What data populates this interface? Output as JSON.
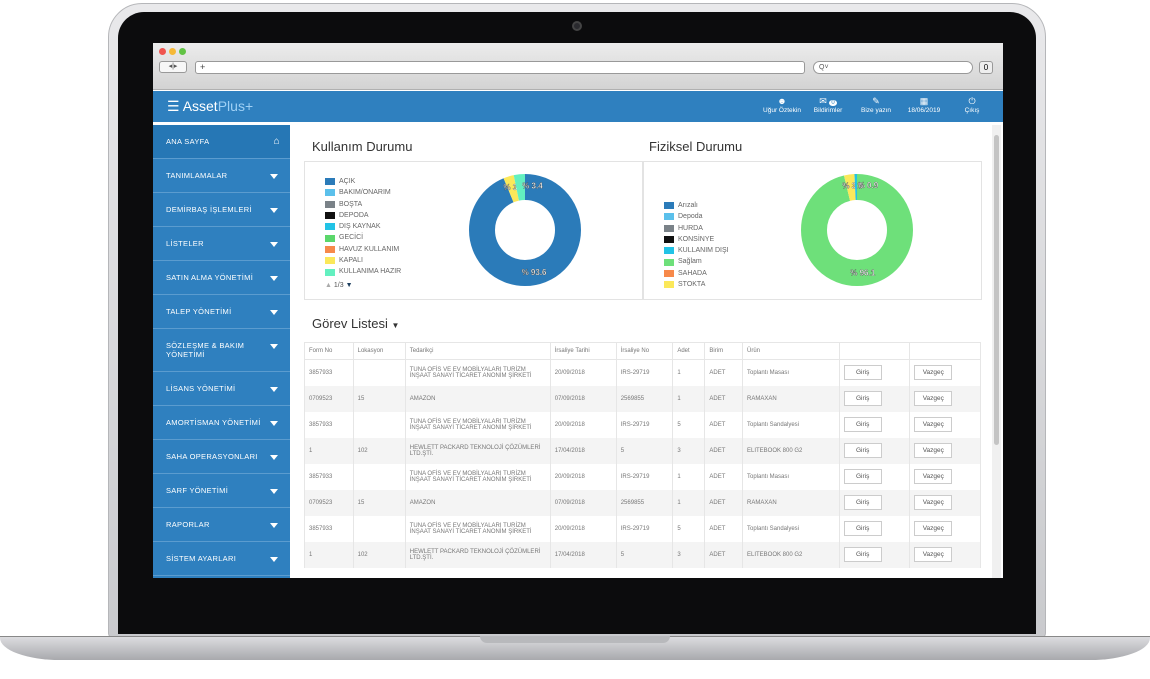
{
  "browser": {
    "url": "+",
    "search_placeholder": "Q˅",
    "nav": "◂|▸",
    "download": "0"
  },
  "app": {
    "logo_a": "Asset",
    "logo_b": "Plus+",
    "menu_icon": "☰"
  },
  "header_items": [
    {
      "label": "Uğur Öztekin",
      "icon": "user-icon",
      "glyph": "☻"
    },
    {
      "label": "Bildirimler",
      "icon": "megaphone-icon",
      "glyph": "✉",
      "badge": "0"
    },
    {
      "label": "Bize yazın",
      "icon": "feather-icon",
      "glyph": "✎"
    },
    {
      "label": "18/06/2019",
      "icon": "calendar-icon",
      "glyph": "▦"
    },
    {
      "label": "Çıkış",
      "icon": "power-icon",
      "glyph": "⏻"
    }
  ],
  "sidebar": [
    {
      "label": "ANA SAYFA"
    },
    {
      "label": "TANIMLAMALAR"
    },
    {
      "label": "DEMİRBAŞ İŞLEMLERİ"
    },
    {
      "label": "LİSTELER"
    },
    {
      "label": "SATIN ALMA YÖNETİMİ"
    },
    {
      "label": "TALEP YÖNETİMİ"
    },
    {
      "label": "SÖZLEŞME & BAKIM YÖNETİMİ"
    },
    {
      "label": "LİSANS YÖNETİMİ"
    },
    {
      "label": "AMORTİSMAN YÖNETİMİ"
    },
    {
      "label": "SAHA OPERASYONLARI"
    },
    {
      "label": "SARF YÖNETİMİ"
    },
    {
      "label": "RAPORLAR"
    },
    {
      "label": "SİSTEM AYARLARI"
    }
  ],
  "chart_data": [
    {
      "type": "pie",
      "title": "Kullanım Durumu",
      "donut": true,
      "legend": [
        {
          "name": "AÇIK",
          "color": "#2b7bb9"
        },
        {
          "name": "BAKIM/ONARIM",
          "color": "#5bc0eb"
        },
        {
          "name": "BOŞTA",
          "color": "#7a8288"
        },
        {
          "name": "DEPODA",
          "color": "#111111"
        },
        {
          "name": "DIŞ KAYNAK",
          "color": "#22c3e6"
        },
        {
          "name": "GECİCİ",
          "color": "#5bd76b"
        },
        {
          "name": "HAVUZ KULLANIM",
          "color": "#f7894a"
        },
        {
          "name": "KAPALI",
          "color": "#fbe85a"
        },
        {
          "name": "KULLANIMA HAZIR",
          "color": "#63f0c0"
        }
      ],
      "pager": "1/3",
      "slices": [
        {
          "name": "AÇIK",
          "value": 93.6,
          "label": "% 93.6",
          "color": "#2b7bb9"
        },
        {
          "name": "KAPALI",
          "value": 3.0,
          "label": "% 3.0",
          "color": "#fbe85a"
        },
        {
          "name": "KULLANIMA HAZIR",
          "value": 3.4,
          "label": "% 3.4",
          "color": "#63f0c0"
        }
      ]
    },
    {
      "type": "pie",
      "title": "Fiziksel Durumu",
      "donut": true,
      "legend": [
        {
          "name": "Arızalı",
          "color": "#2b7bb9"
        },
        {
          "name": "Depoda",
          "color": "#5bc0eb"
        },
        {
          "name": "HURDA",
          "color": "#7a8288"
        },
        {
          "name": "KONSİNYE",
          "color": "#111111"
        },
        {
          "name": "KULLANIM DIŞI",
          "color": "#22c3e6"
        },
        {
          "name": "Sağlam",
          "color": "#6ee07a"
        },
        {
          "name": "SAHADA",
          "color": "#f7894a"
        },
        {
          "name": "STOKTA",
          "color": "#fbe85a"
        }
      ],
      "slices": [
        {
          "name": "Sağlam",
          "value": 96.1,
          "label": "% 96.1",
          "color": "#6ee07a"
        },
        {
          "name": "STOKTA",
          "value": 3.0,
          "label": "% 3.0",
          "color": "#fbe85a"
        },
        {
          "name": "KULLANIM DIŞI",
          "value": 0.9,
          "label": "% 0.9",
          "color": "#22c3e6"
        }
      ]
    }
  ],
  "tasks": {
    "title": "Görev Listesi",
    "columns": [
      "Form No",
      "Lokasyon",
      "Tedarikçi",
      "İrsaliye Tarihi",
      "İrsaliye No",
      "Adet",
      "Birim",
      "Ürün",
      "",
      ""
    ],
    "accept": "Giriş",
    "cancel": "Vazgeç",
    "rows": [
      [
        "3857933",
        "",
        "TUNA OFİS VE EV MOBİLYALARI TURİZM İNŞAAT SANAYİ TİCARET ANONİM ŞİRKETİ",
        "20/09/2018",
        "IRS-29719",
        "1",
        "ADET",
        "Toplantı Masası"
      ],
      [
        "0709523",
        "15",
        "AMAZON",
        "07/09/2018",
        "2569855",
        "1",
        "ADET",
        "RAMAXAN"
      ],
      [
        "3857933",
        "",
        "TUNA OFİS VE EV MOBİLYALARI TURİZM İNŞAAT SANAYİ TİCARET ANONİM ŞİRKETİ",
        "20/09/2018",
        "IRS-29719",
        "5",
        "ADET",
        "Toplantı Sandalyesi"
      ],
      [
        "1",
        "102",
        "HEWLETT PACKARD TEKNOLOJİ ÇÖZÜMLERİ LTD.ŞTİ.",
        "17/04/2018",
        "5",
        "3",
        "ADET",
        "ELITEBOOK 800 G2"
      ],
      [
        "3857933",
        "",
        "TUNA OFİS VE EV MOBİLYALARI TURİZM İNŞAAT SANAYİ TİCARET ANONİM ŞİRKETİ",
        "20/09/2018",
        "IRS-29719",
        "1",
        "ADET",
        "Toplantı Masası"
      ],
      [
        "0709523",
        "15",
        "AMAZON",
        "07/09/2018",
        "2569855",
        "1",
        "ADET",
        "RAMAXAN"
      ],
      [
        "3857933",
        "",
        "TUNA OFİS VE EV MOBİLYALARI TURİZM İNŞAAT SANAYİ TİCARET ANONİM ŞİRKETİ",
        "20/09/2018",
        "IRS-29719",
        "5",
        "ADET",
        "Toplantı Sandalyesi"
      ],
      [
        "1",
        "102",
        "HEWLETT PACKARD TEKNOLOJİ ÇÖZÜMLERİ LTD.ŞTİ.",
        "17/04/2018",
        "5",
        "3",
        "ADET",
        "ELITEBOOK 800 G2"
      ]
    ]
  }
}
